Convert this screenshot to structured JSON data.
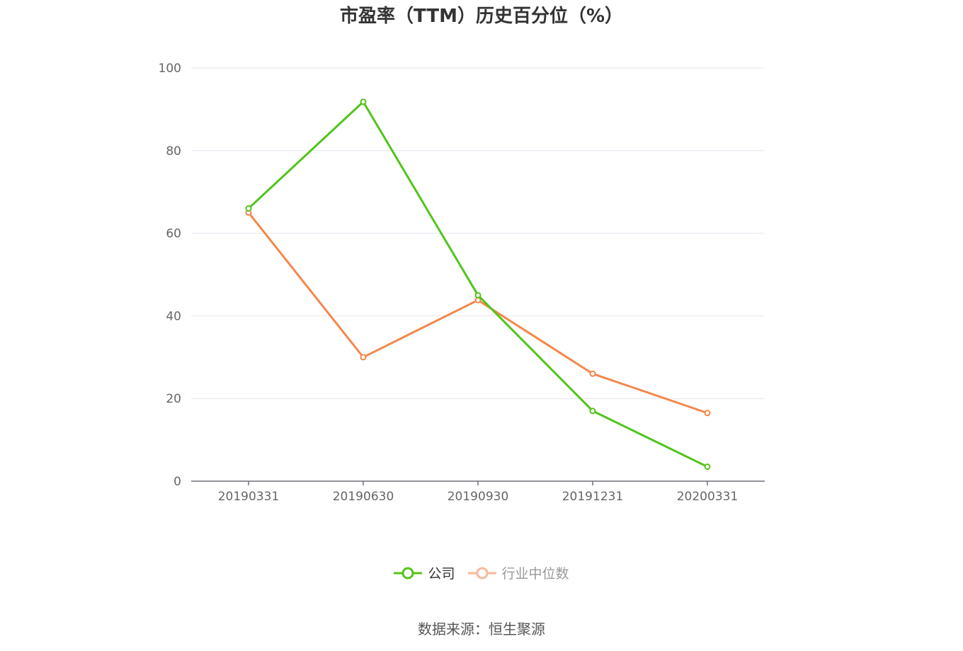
{
  "chart_data": {
    "type": "line",
    "title": "市盈率（TTM）历史百分位（%）",
    "categories": [
      "20190331",
      "20190630",
      "20190930",
      "20191231",
      "20200331"
    ],
    "series": [
      {
        "name": "公司",
        "values": [
          66.0,
          91.8,
          45.0,
          17.0,
          3.5
        ],
        "color": "#52c41a"
      },
      {
        "name": "行业中位数",
        "values": [
          65.0,
          30.0,
          43.8,
          26.0,
          16.5
        ],
        "color": "#f4874b"
      }
    ],
    "ylim": [
      0,
      100
    ],
    "yticks": [
      0,
      20,
      40,
      60,
      80,
      100
    ],
    "grid": true,
    "legend": "bottom",
    "source": "数据来源：恒生聚源"
  }
}
